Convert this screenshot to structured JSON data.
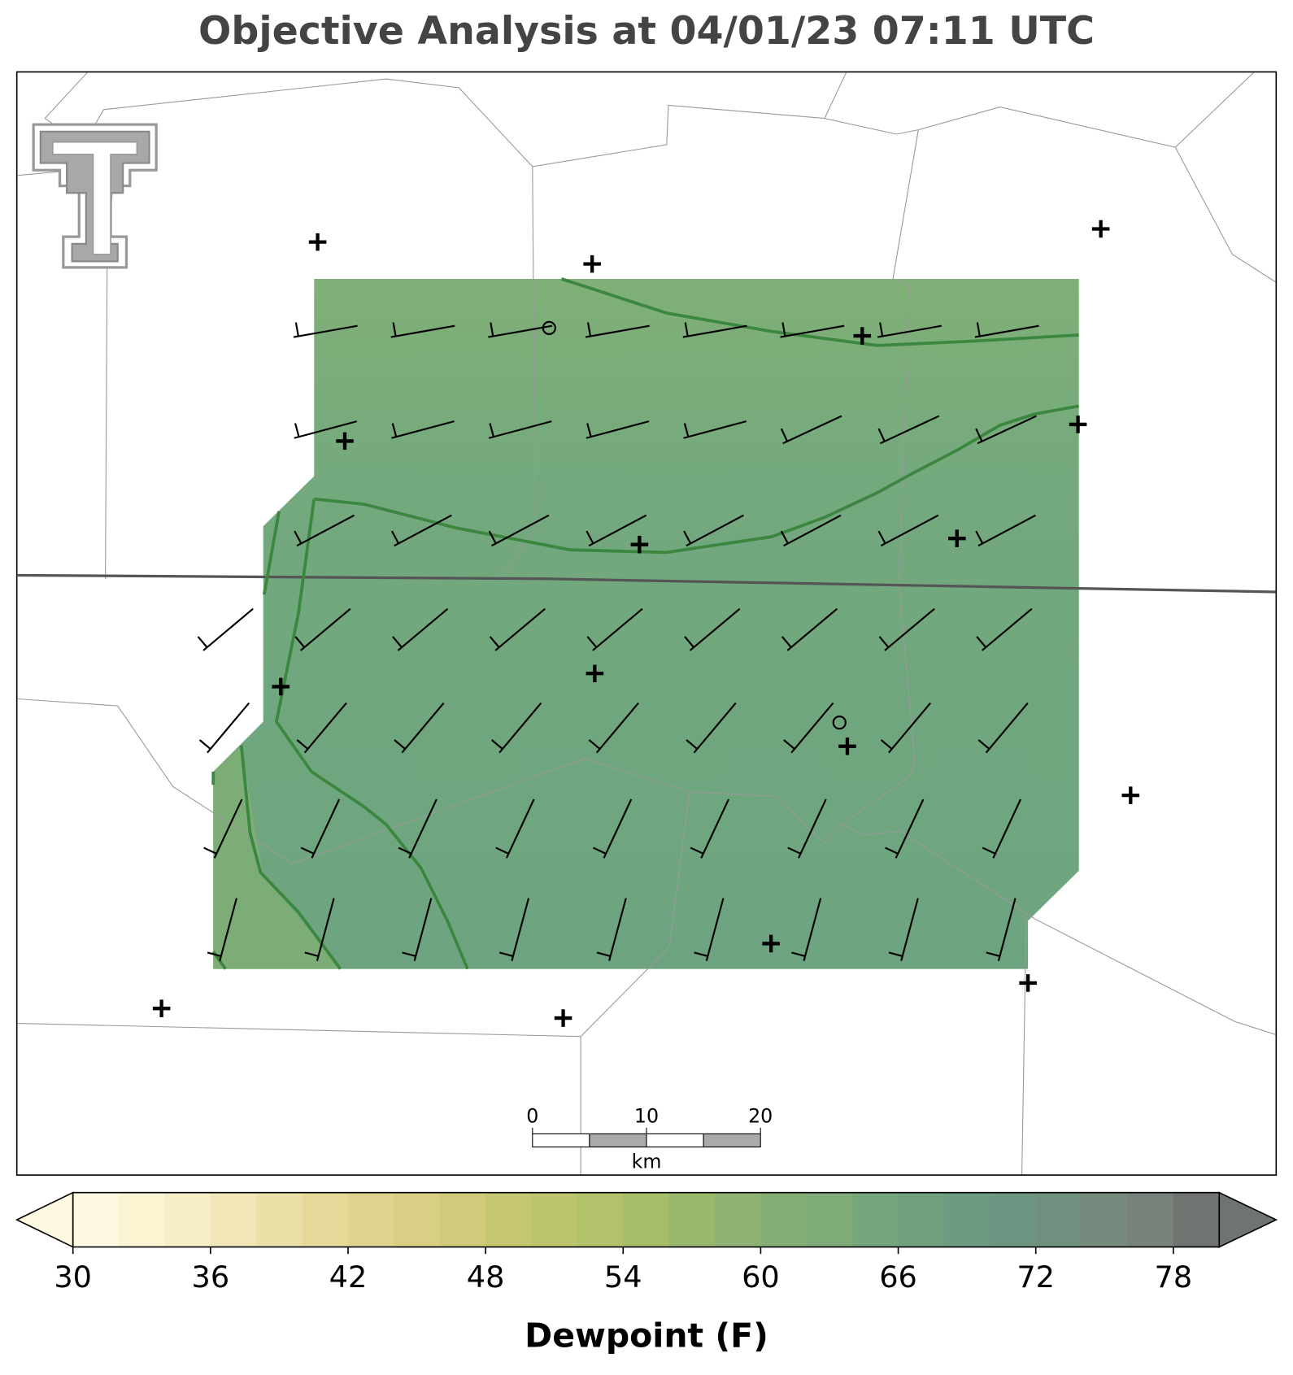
{
  "title": "Objective Analysis at 04/01/23 07:11 UTC",
  "scale_bar": {
    "ticks": [
      0,
      10,
      20
    ],
    "unit": "km"
  },
  "colorbar": {
    "label": "Dewpoint (F)",
    "lim": [
      30,
      80
    ],
    "ticks": [
      30,
      36,
      42,
      48,
      54,
      60,
      66,
      72,
      78
    ],
    "colors": [
      "#fdf9e1",
      "#faf4d2",
      "#f5eec7",
      "#f0e6b6",
      "#ebe0a8",
      "#e5d99a",
      "#dfd38f",
      "#d8cf85",
      "#cfcb7a",
      "#c4c670",
      "#bcc46c",
      "#b3c26a",
      "#a7bd6a",
      "#9ab86d",
      "#8eb271",
      "#84ae75",
      "#7eab78",
      "#76a67c",
      "#70a17f",
      "#6b9c81",
      "#6c9682",
      "#6f8f7f",
      "#76897d",
      "#77827a",
      "#707470"
    ]
  }
}
